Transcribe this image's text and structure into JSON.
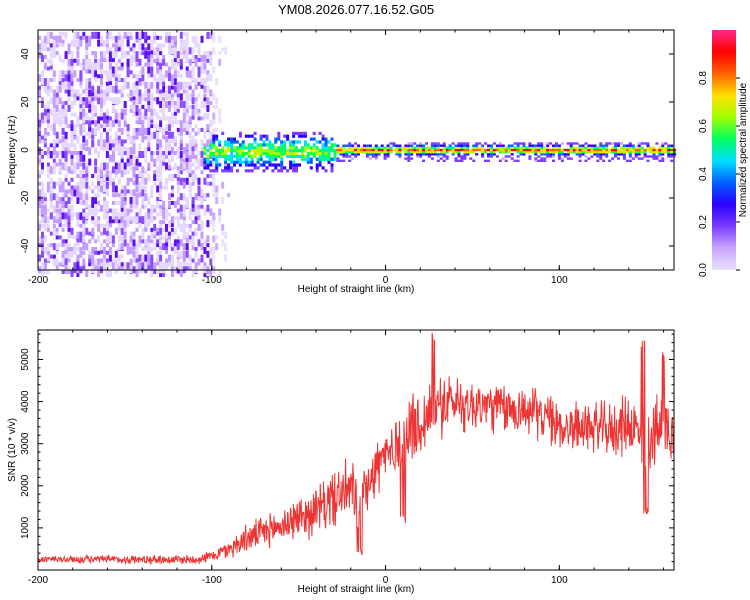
{
  "title": "YM08.2026.077.16.52.G05",
  "chart_data": [
    {
      "type": "heatmap",
      "name": "spectrogram",
      "xlabel": "Height of straight line (km)",
      "ylabel": "Frequency (Hz)",
      "xlim": [
        -200,
        166
      ],
      "ylim": [
        -50,
        50
      ],
      "xticks": [
        -200,
        -100,
        0,
        100
      ],
      "yticks": [
        -40,
        -20,
        0,
        20,
        40
      ],
      "colorbar": {
        "label": "Normalized spectral amplitude",
        "range": [
          0,
          1
        ],
        "ticks": [
          0.0,
          0.2,
          0.4,
          0.6,
          0.8
        ],
        "tick_labels": [
          "0.0",
          "0.2",
          "0.4",
          "0.6",
          "0.8"
        ],
        "colormap": [
          "#e8e0ff",
          "#c9a6ff",
          "#7b3cff",
          "#2a00ff",
          "#0060ff",
          "#00e0ff",
          "#00ff60",
          "#a0ff00",
          "#ffe000",
          "#ff6000",
          "#ff0000",
          "#ff2a8c"
        ]
      },
      "regions": [
        {
          "description": "noise",
          "x_range": [
            -200,
            -95
          ],
          "freq_range": [
            -50,
            50
          ],
          "amplitude": 0.05
        },
        {
          "description": "transition",
          "x_range": [
            -105,
            -30
          ],
          "freq_range": [
            -8,
            8
          ],
          "amplitude": 0.3
        },
        {
          "description": "carrier",
          "x_range": [
            -30,
            166
          ],
          "freq_center": 0.5,
          "amplitude": 0.95
        }
      ]
    },
    {
      "type": "line",
      "name": "snr",
      "xlabel": "Height of straight line (km)",
      "ylabel": "SNR (10 * v/v)",
      "xlim": [
        -200,
        166
      ],
      "ylim": [
        0,
        5700
      ],
      "xticks": [
        -200,
        -100,
        0,
        100
      ],
      "yticks": [
        1000,
        2000,
        3000,
        4000,
        5000
      ],
      "color": "#ee3333",
      "envelope_mean": [
        [
          -200,
          250
        ],
        [
          -110,
          250
        ],
        [
          -100,
          330
        ],
        [
          -90,
          500
        ],
        [
          -80,
          750
        ],
        [
          -70,
          900
        ],
        [
          -60,
          1050
        ],
        [
          -50,
          1250
        ],
        [
          -40,
          1400
        ],
        [
          -30,
          1700
        ],
        [
          -20,
          1900
        ],
        [
          -15,
          1600
        ],
        [
          -10,
          2200
        ],
        [
          -5,
          2500
        ],
        [
          0,
          2700
        ],
        [
          10,
          3100
        ],
        [
          20,
          3500
        ],
        [
          30,
          3900
        ],
        [
          40,
          4000
        ],
        [
          50,
          3900
        ],
        [
          60,
          3900
        ],
        [
          70,
          3800
        ],
        [
          80,
          3800
        ],
        [
          90,
          3700
        ],
        [
          100,
          3400
        ],
        [
          110,
          3400
        ],
        [
          120,
          3400
        ],
        [
          130,
          3300
        ],
        [
          140,
          3500
        ],
        [
          150,
          3100
        ],
        [
          160,
          3400
        ],
        [
          166,
          3400
        ]
      ],
      "envelope_spread": [
        [
          -200,
          100
        ],
        [
          -100,
          150
        ],
        [
          -80,
          400
        ],
        [
          -60,
          500
        ],
        [
          -40,
          700
        ],
        [
          -20,
          900
        ],
        [
          0,
          900
        ],
        [
          20,
          1000
        ],
        [
          40,
          800
        ],
        [
          80,
          700
        ],
        [
          120,
          700
        ],
        [
          160,
          1000
        ],
        [
          166,
          900
        ]
      ],
      "dips": [
        [
          -15,
          300
        ],
        [
          10,
          1100
        ],
        [
          150,
          1300
        ]
      ],
      "peaks": [
        [
          28,
          5650
        ],
        [
          148,
          5600
        ],
        [
          160,
          5200
        ]
      ]
    }
  ]
}
